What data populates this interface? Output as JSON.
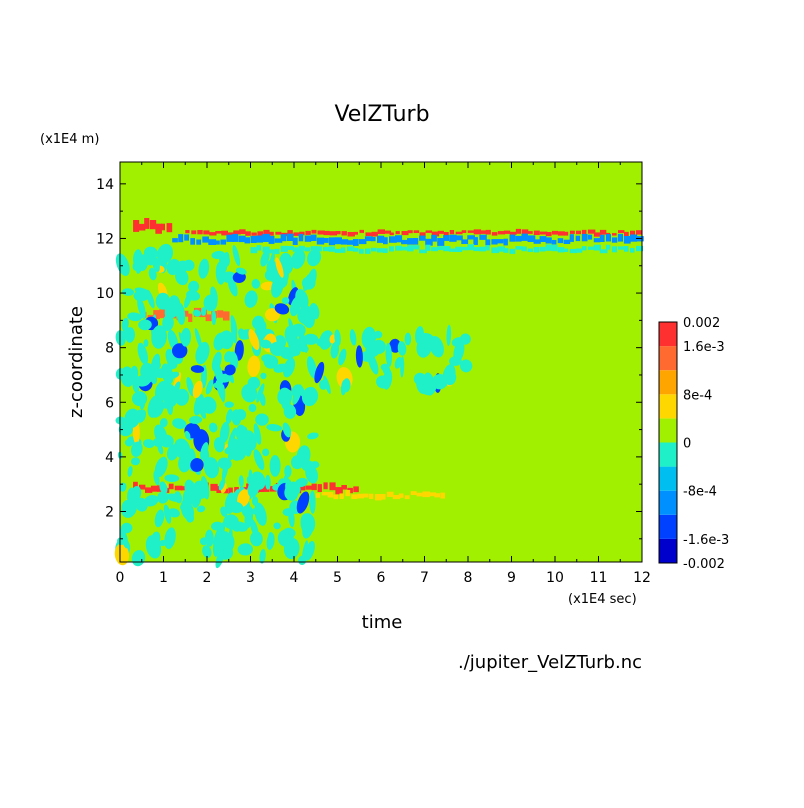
{
  "chart_data": {
    "type": "heatmap",
    "title": "VelZTurb",
    "xlabel": "time",
    "ylabel": "z-coordinate",
    "x_unit": "(x1E4 sec)",
    "y_unit": "(x1E4 m)",
    "source_file": "./jupiter_VelZTurb.nc",
    "xlim": [
      0,
      12
    ],
    "ylim": [
      0.15,
      14.8
    ],
    "x_ticks": [
      0,
      1,
      2,
      3,
      4,
      5,
      6,
      7,
      8,
      9,
      10,
      11,
      12
    ],
    "y_ticks": [
      2,
      4,
      6,
      8,
      10,
      12,
      14
    ],
    "background_level_color": "#a0f000",
    "colorbar": {
      "levels": [
        -0.002,
        -0.0016,
        -0.0012,
        -0.0008,
        -0.0004,
        0,
        0.0004,
        0.0008,
        0.0012,
        0.0016,
        0.002
      ],
      "colors": [
        "#0000cd",
        "#0040ff",
        "#0090ff",
        "#00bff0",
        "#20f0c8",
        "#a0f000",
        "#ffd700",
        "#ffa500",
        "#ff6a30",
        "#ff3030"
      ],
      "tick_values": [
        0.002,
        0.0016,
        0.0008,
        0,
        -0.0008,
        -0.0016,
        -0.002
      ],
      "tick_labels": [
        "0.002",
        "1.6e-3",
        "8e-4",
        "0",
        "-8e-4",
        "-1.6e-3",
        "-0.002"
      ]
    },
    "features": [
      {
        "kind": "band",
        "t_start": 1.5,
        "t_end": 12,
        "z": 12.2,
        "width": 0.15,
        "value": 0.0016
      },
      {
        "kind": "band",
        "t_start": 1.2,
        "t_end": 12,
        "z": 11.95,
        "width": 0.25,
        "value": -0.0012
      },
      {
        "kind": "band",
        "t_start": 3,
        "t_end": 12,
        "z": 11.6,
        "width": 0.2,
        "value": -0.0004
      },
      {
        "kind": "band",
        "t_start": 0.3,
        "t_end": 5.5,
        "z": 2.85,
        "width": 0.25,
        "value": 0.0016
      },
      {
        "kind": "band",
        "t_start": 4.5,
        "t_end": 7.5,
        "z": 2.6,
        "width": 0.2,
        "value": 0.0004
      },
      {
        "kind": "band",
        "t_start": 0.3,
        "t_end": 1.2,
        "z": 12.4,
        "width": 0.4,
        "value": 0.0016
      },
      {
        "kind": "band",
        "t_start": 0.5,
        "t_end": 2.5,
        "z": 9.2,
        "width": 0.3,
        "value": 0.0012
      },
      {
        "kind": "region",
        "t_start": 0,
        "t_end": 4.5,
        "z_start": 0.2,
        "z_end": 11.5,
        "value": -0.0004
      },
      {
        "kind": "region",
        "t_start": 4.5,
        "t_end": 8,
        "z_start": 6.5,
        "z_end": 8.5,
        "value": -0.0004
      }
    ]
  }
}
